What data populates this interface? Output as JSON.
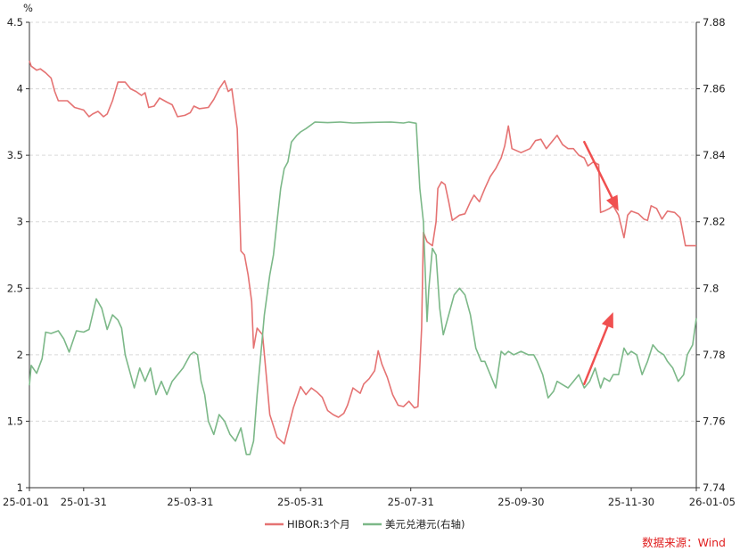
{
  "chart_data": {
    "type": "line",
    "y_unit_label": "%",
    "x_ticks": [
      "25-01-01",
      "25-01-31",
      "25-03-31",
      "25-05-31",
      "25-07-31",
      "25-09-30",
      "25-11-30",
      "26-01-05"
    ],
    "x_range": [
      "2025-01-01",
      "2026-01-05"
    ],
    "y_left": {
      "range": [
        1,
        4.5
      ],
      "ticks": [
        "1",
        "1.5",
        "2",
        "2.5",
        "3",
        "3.5",
        "4",
        "4.5"
      ]
    },
    "y_right": {
      "range": [
        7.74,
        7.88
      ],
      "ticks": [
        "7.74",
        "7.76",
        "7.78",
        "7.8",
        "7.82",
        "7.84",
        "7.86",
        "7.88"
      ]
    },
    "grid": "horizontal dashed",
    "legend_position": "bottom-center",
    "series": [
      {
        "name": "HIBOR:3个月",
        "axis": "left",
        "color": "#e57373",
        "points": [
          [
            "2025-01-01",
            4.21
          ],
          [
            "2025-01-02",
            4.17
          ],
          [
            "2025-01-05",
            4.14
          ],
          [
            "2025-01-07",
            4.15
          ],
          [
            "2025-01-10",
            4.12
          ],
          [
            "2025-01-13",
            4.08
          ],
          [
            "2025-01-15",
            3.98
          ],
          [
            "2025-01-17",
            3.91
          ],
          [
            "2025-01-22",
            3.91
          ],
          [
            "2025-01-26",
            3.86
          ],
          [
            "2025-01-31",
            3.84
          ],
          [
            "2025-02-03",
            3.79
          ],
          [
            "2025-02-05",
            3.81
          ],
          [
            "2025-02-08",
            3.83
          ],
          [
            "2025-02-11",
            3.79
          ],
          [
            "2025-02-13",
            3.81
          ],
          [
            "2025-02-16",
            3.91
          ],
          [
            "2025-02-19",
            4.05
          ],
          [
            "2025-02-23",
            4.05
          ],
          [
            "2025-02-26",
            4.0
          ],
          [
            "2025-03-01",
            3.98
          ],
          [
            "2025-03-04",
            3.95
          ],
          [
            "2025-03-06",
            3.97
          ],
          [
            "2025-03-08",
            3.86
          ],
          [
            "2025-03-11",
            3.87
          ],
          [
            "2025-03-14",
            3.93
          ],
          [
            "2025-03-18",
            3.9
          ],
          [
            "2025-03-21",
            3.88
          ],
          [
            "2025-03-24",
            3.79
          ],
          [
            "2025-03-28",
            3.8
          ],
          [
            "2025-03-31",
            3.82
          ],
          [
            "2025-04-02",
            3.87
          ],
          [
            "2025-04-05",
            3.85
          ],
          [
            "2025-04-10",
            3.86
          ],
          [
            "2025-04-13",
            3.92
          ],
          [
            "2025-04-16",
            4.0
          ],
          [
            "2025-04-19",
            4.06
          ],
          [
            "2025-04-21",
            3.98
          ],
          [
            "2025-04-23",
            4.0
          ],
          [
            "2025-04-26",
            3.7
          ],
          [
            "2025-04-28",
            2.78
          ],
          [
            "2025-04-30",
            2.75
          ],
          [
            "2025-05-02",
            2.6
          ],
          [
            "2025-05-04",
            2.4
          ],
          [
            "2025-05-05",
            2.05
          ],
          [
            "2025-05-07",
            2.2
          ],
          [
            "2025-05-10",
            2.15
          ],
          [
            "2025-05-12",
            1.85
          ],
          [
            "2025-05-14",
            1.55
          ],
          [
            "2025-05-18",
            1.38
          ],
          [
            "2025-05-22",
            1.33
          ],
          [
            "2025-05-27",
            1.6
          ],
          [
            "2025-05-31",
            1.76
          ],
          [
            "2025-06-03",
            1.7
          ],
          [
            "2025-06-06",
            1.75
          ],
          [
            "2025-06-09",
            1.72
          ],
          [
            "2025-06-12",
            1.68
          ],
          [
            "2025-06-15",
            1.58
          ],
          [
            "2025-06-18",
            1.55
          ],
          [
            "2025-06-21",
            1.53
          ],
          [
            "2025-06-24",
            1.56
          ],
          [
            "2025-06-26",
            1.62
          ],
          [
            "2025-06-29",
            1.75
          ],
          [
            "2025-07-03",
            1.71
          ],
          [
            "2025-07-05",
            1.78
          ],
          [
            "2025-07-08",
            1.82
          ],
          [
            "2025-07-11",
            1.88
          ],
          [
            "2025-07-13",
            2.03
          ],
          [
            "2025-07-15",
            1.93
          ],
          [
            "2025-07-18",
            1.83
          ],
          [
            "2025-07-21",
            1.7
          ],
          [
            "2025-07-24",
            1.62
          ],
          [
            "2025-07-27",
            1.61
          ],
          [
            "2025-07-30",
            1.65
          ],
          [
            "2025-08-02",
            1.6
          ],
          [
            "2025-08-04",
            1.61
          ],
          [
            "2025-08-06",
            2.2
          ],
          [
            "2025-08-07",
            2.92
          ],
          [
            "2025-08-09",
            2.85
          ],
          [
            "2025-08-12",
            2.82
          ],
          [
            "2025-08-14",
            3.0
          ],
          [
            "2025-08-15",
            3.25
          ],
          [
            "2025-08-17",
            3.3
          ],
          [
            "2025-08-19",
            3.28
          ],
          [
            "2025-08-21",
            3.15
          ],
          [
            "2025-08-23",
            3.01
          ],
          [
            "2025-08-27",
            3.05
          ],
          [
            "2025-08-30",
            3.06
          ],
          [
            "2025-09-02",
            3.15
          ],
          [
            "2025-09-04",
            3.2
          ],
          [
            "2025-09-07",
            3.15
          ],
          [
            "2025-09-10",
            3.25
          ],
          [
            "2025-09-13",
            3.34
          ],
          [
            "2025-09-16",
            3.4
          ],
          [
            "2025-09-19",
            3.48
          ],
          [
            "2025-09-21",
            3.57
          ],
          [
            "2025-09-23",
            3.72
          ],
          [
            "2025-09-25",
            3.55
          ],
          [
            "2025-09-30",
            3.52
          ],
          [
            "2025-10-05",
            3.55
          ],
          [
            "2025-10-08",
            3.61
          ],
          [
            "2025-10-11",
            3.62
          ],
          [
            "2025-10-14",
            3.55
          ],
          [
            "2025-10-17",
            3.6
          ],
          [
            "2025-10-20",
            3.65
          ],
          [
            "2025-10-23",
            3.58
          ],
          [
            "2025-10-26",
            3.55
          ],
          [
            "2025-10-29",
            3.55
          ],
          [
            "2025-11-01",
            3.5
          ],
          [
            "2025-11-04",
            3.48
          ],
          [
            "2025-11-06",
            3.42
          ],
          [
            "2025-11-09",
            3.45
          ],
          [
            "2025-11-12",
            3.43
          ],
          [
            "2025-11-13",
            3.07
          ],
          [
            "2025-11-15",
            3.08
          ],
          [
            "2025-11-18",
            3.1
          ],
          [
            "2025-11-20",
            3.12
          ],
          [
            "2025-11-23",
            3.05
          ],
          [
            "2025-11-26",
            2.88
          ],
          [
            "2025-11-28",
            3.05
          ],
          [
            "2025-11-30",
            3.08
          ],
          [
            "2025-12-04",
            3.06
          ],
          [
            "2025-12-07",
            3.02
          ],
          [
            "2025-12-09",
            3.01
          ],
          [
            "2025-12-11",
            3.12
          ],
          [
            "2025-12-14",
            3.1
          ],
          [
            "2025-12-17",
            3.02
          ],
          [
            "2025-12-20",
            3.08
          ],
          [
            "2025-12-24",
            3.07
          ],
          [
            "2025-12-27",
            3.03
          ],
          [
            "2025-12-30",
            2.82
          ],
          [
            "2026-01-05",
            2.82
          ]
        ]
      },
      {
        "name": "美元兑港元(右轴)",
        "axis": "right",
        "color": "#7cb888",
        "points": [
          [
            "2025-01-01",
            7.7708
          ],
          [
            "2025-01-02",
            7.7768
          ],
          [
            "2025-01-05",
            7.7744
          ],
          [
            "2025-01-08",
            7.7788
          ],
          [
            "2025-01-10",
            7.7868
          ],
          [
            "2025-01-13",
            7.7864
          ],
          [
            "2025-01-17",
            7.7872
          ],
          [
            "2025-01-20",
            7.7848
          ],
          [
            "2025-01-23",
            7.7808
          ],
          [
            "2025-01-27",
            7.7872
          ],
          [
            "2025-01-31",
            7.7868
          ],
          [
            "2025-02-03",
            7.7876
          ],
          [
            "2025-02-07",
            7.7968
          ],
          [
            "2025-02-10",
            7.794
          ],
          [
            "2025-02-13",
            7.7876
          ],
          [
            "2025-02-16",
            7.792
          ],
          [
            "2025-02-19",
            7.7904
          ],
          [
            "2025-02-21",
            7.788
          ],
          [
            "2025-02-23",
            7.78
          ],
          [
            "2025-02-26",
            7.774
          ],
          [
            "2025-02-28",
            7.77
          ],
          [
            "2025-03-03",
            7.776
          ],
          [
            "2025-03-06",
            7.772
          ],
          [
            "2025-03-09",
            7.776
          ],
          [
            "2025-03-12",
            7.768
          ],
          [
            "2025-03-15",
            7.772
          ],
          [
            "2025-03-18",
            7.768
          ],
          [
            "2025-03-21",
            7.772
          ],
          [
            "2025-03-24",
            7.774
          ],
          [
            "2025-03-27",
            7.776
          ],
          [
            "2025-03-31",
            7.78
          ],
          [
            "2025-04-02",
            7.7808
          ],
          [
            "2025-04-04",
            7.78
          ],
          [
            "2025-04-06",
            7.772
          ],
          [
            "2025-04-08",
            7.768
          ],
          [
            "2025-04-10",
            7.76
          ],
          [
            "2025-04-13",
            7.756
          ],
          [
            "2025-04-16",
            7.762
          ],
          [
            "2025-04-19",
            7.76
          ],
          [
            "2025-04-22",
            7.756
          ],
          [
            "2025-04-25",
            7.754
          ],
          [
            "2025-04-28",
            7.758
          ],
          [
            "2025-05-01",
            7.75
          ],
          [
            "2025-05-03",
            7.75
          ],
          [
            "2025-05-05",
            7.754
          ],
          [
            "2025-05-07",
            7.768
          ],
          [
            "2025-05-09",
            7.78
          ],
          [
            "2025-05-11",
            7.792
          ],
          [
            "2025-05-14",
            7.804
          ],
          [
            "2025-05-16",
            7.81
          ],
          [
            "2025-05-18",
            7.82
          ],
          [
            "2025-05-20",
            7.83
          ],
          [
            "2025-05-22",
            7.836
          ],
          [
            "2025-05-24",
            7.838
          ],
          [
            "2025-05-26",
            7.844
          ],
          [
            "2025-05-29",
            7.846
          ],
          [
            "2025-05-31",
            7.847
          ],
          [
            "2025-06-03",
            7.848
          ],
          [
            "2025-06-08",
            7.85
          ],
          [
            "2025-06-15",
            7.8498
          ],
          [
            "2025-06-22",
            7.85
          ],
          [
            "2025-06-29",
            7.8497
          ],
          [
            "2025-07-06",
            7.8498
          ],
          [
            "2025-07-13",
            7.8499
          ],
          [
            "2025-07-20",
            7.85
          ],
          [
            "2025-07-27",
            7.8497
          ],
          [
            "2025-07-30",
            7.85
          ],
          [
            "2025-08-03",
            7.8496
          ],
          [
            "2025-08-05",
            7.83
          ],
          [
            "2025-08-07",
            7.82
          ],
          [
            "2025-08-09",
            7.79
          ],
          [
            "2025-08-10",
            7.8
          ],
          [
            "2025-08-12",
            7.812
          ],
          [
            "2025-08-14",
            7.81
          ],
          [
            "2025-08-16",
            7.794
          ],
          [
            "2025-08-18",
            7.786
          ],
          [
            "2025-08-21",
            7.792
          ],
          [
            "2025-08-24",
            7.798
          ],
          [
            "2025-08-27",
            7.8
          ],
          [
            "2025-08-30",
            7.798
          ],
          [
            "2025-09-02",
            7.792
          ],
          [
            "2025-09-05",
            7.782
          ],
          [
            "2025-09-08",
            7.778
          ],
          [
            "2025-09-10",
            7.778
          ],
          [
            "2025-09-13",
            7.774
          ],
          [
            "2025-09-16",
            7.77
          ],
          [
            "2025-09-19",
            7.781
          ],
          [
            "2025-09-21",
            7.78
          ],
          [
            "2025-09-23",
            7.781
          ],
          [
            "2025-09-26",
            7.78
          ],
          [
            "2025-09-30",
            7.781
          ],
          [
            "2025-10-04",
            7.78
          ],
          [
            "2025-10-07",
            7.78
          ],
          [
            "2025-10-09",
            7.778
          ],
          [
            "2025-10-12",
            7.774
          ],
          [
            "2025-10-15",
            7.767
          ],
          [
            "2025-10-18",
            7.769
          ],
          [
            "2025-10-20",
            7.772
          ],
          [
            "2025-10-23",
            7.771
          ],
          [
            "2025-10-26",
            7.77
          ],
          [
            "2025-10-29",
            7.772
          ],
          [
            "2025-11-01",
            7.774
          ],
          [
            "2025-11-04",
            7.77
          ],
          [
            "2025-11-07",
            7.772
          ],
          [
            "2025-11-10",
            7.776
          ],
          [
            "2025-11-13",
            7.77
          ],
          [
            "2025-11-15",
            7.773
          ],
          [
            "2025-11-18",
            7.772
          ],
          [
            "2025-11-20",
            7.774
          ],
          [
            "2025-11-23",
            7.774
          ],
          [
            "2025-11-26",
            7.782
          ],
          [
            "2025-11-28",
            7.78
          ],
          [
            "2025-11-30",
            7.781
          ],
          [
            "2025-12-03",
            7.78
          ],
          [
            "2025-12-06",
            7.774
          ],
          [
            "2025-12-09",
            7.778
          ],
          [
            "2025-12-12",
            7.783
          ],
          [
            "2025-12-15",
            7.781
          ],
          [
            "2025-12-18",
            7.78
          ],
          [
            "2025-12-20",
            7.778
          ],
          [
            "2025-12-23",
            7.776
          ],
          [
            "2025-12-26",
            7.772
          ],
          [
            "2025-12-29",
            7.774
          ],
          [
            "2025-12-31",
            7.78
          ],
          [
            "2026-01-03",
            7.783
          ],
          [
            "2026-01-05",
            7.791
          ]
        ]
      }
    ],
    "annotations": [
      {
        "type": "arrow",
        "color": "#f05050",
        "from": [
          "2025-11-04",
          3.6
        ],
        "to": [
          "2025-11-23",
          3.08
        ]
      },
      {
        "type": "arrow",
        "color": "#f05050",
        "from": [
          "2025-11-04",
          1.78
        ],
        "to": [
          "2025-11-20",
          2.32
        ]
      }
    ]
  },
  "legend": {
    "items": [
      {
        "label": "HIBOR:3个月",
        "color": "#e57373"
      },
      {
        "label": "美元兑港元(右轴)",
        "color": "#7cb888"
      }
    ]
  },
  "source": {
    "text": "数据来源：Wind",
    "color": "#e02020"
  }
}
